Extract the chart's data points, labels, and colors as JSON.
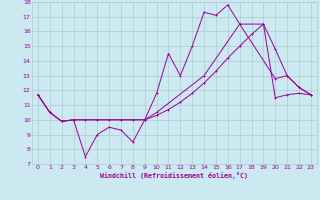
{
  "xlabel": "Windchill (Refroidissement éolien,°C)",
  "bg_color": "#cce8f0",
  "grid_color": "#aacccc",
  "line_color": "#990099",
  "xlim": [
    -0.5,
    23.5
  ],
  "ylim": [
    7,
    18
  ],
  "xticks": [
    0,
    1,
    2,
    3,
    4,
    5,
    6,
    7,
    8,
    9,
    10,
    11,
    12,
    13,
    14,
    15,
    16,
    17,
    18,
    19,
    20,
    21,
    22,
    23
  ],
  "yticks": [
    7,
    8,
    9,
    10,
    11,
    12,
    13,
    14,
    15,
    16,
    17,
    18
  ],
  "line1_x": [
    0,
    1,
    2,
    3,
    4,
    5,
    6,
    7,
    8,
    9,
    10,
    11,
    12,
    13,
    14,
    15,
    16,
    17,
    20,
    21,
    22,
    23
  ],
  "line1_y": [
    11.7,
    10.5,
    9.9,
    10.0,
    7.5,
    9.0,
    9.5,
    9.3,
    8.5,
    10.0,
    11.8,
    14.5,
    13.0,
    15.0,
    17.3,
    17.1,
    17.8,
    16.5,
    12.8,
    13.0,
    12.2,
    11.7
  ],
  "line2_x": [
    0,
    1,
    2,
    3,
    4,
    5,
    6,
    7,
    8,
    9,
    10,
    11,
    12,
    13,
    14,
    15,
    16,
    17,
    18,
    19,
    20,
    21,
    22,
    23
  ],
  "line2_y": [
    11.7,
    10.5,
    9.9,
    10.0,
    10.0,
    10.0,
    10.0,
    10.0,
    10.0,
    10.0,
    10.3,
    10.7,
    11.2,
    11.8,
    12.5,
    13.3,
    14.2,
    15.0,
    15.8,
    16.5,
    11.5,
    11.7,
    11.8,
    11.7
  ],
  "line3_x": [
    0,
    1,
    2,
    3,
    9,
    10,
    14,
    17,
    19,
    20,
    21,
    22,
    23
  ],
  "line3_y": [
    11.7,
    10.5,
    9.9,
    10.0,
    10.0,
    10.5,
    13.0,
    16.5,
    16.5,
    14.8,
    13.0,
    12.2,
    11.7
  ]
}
